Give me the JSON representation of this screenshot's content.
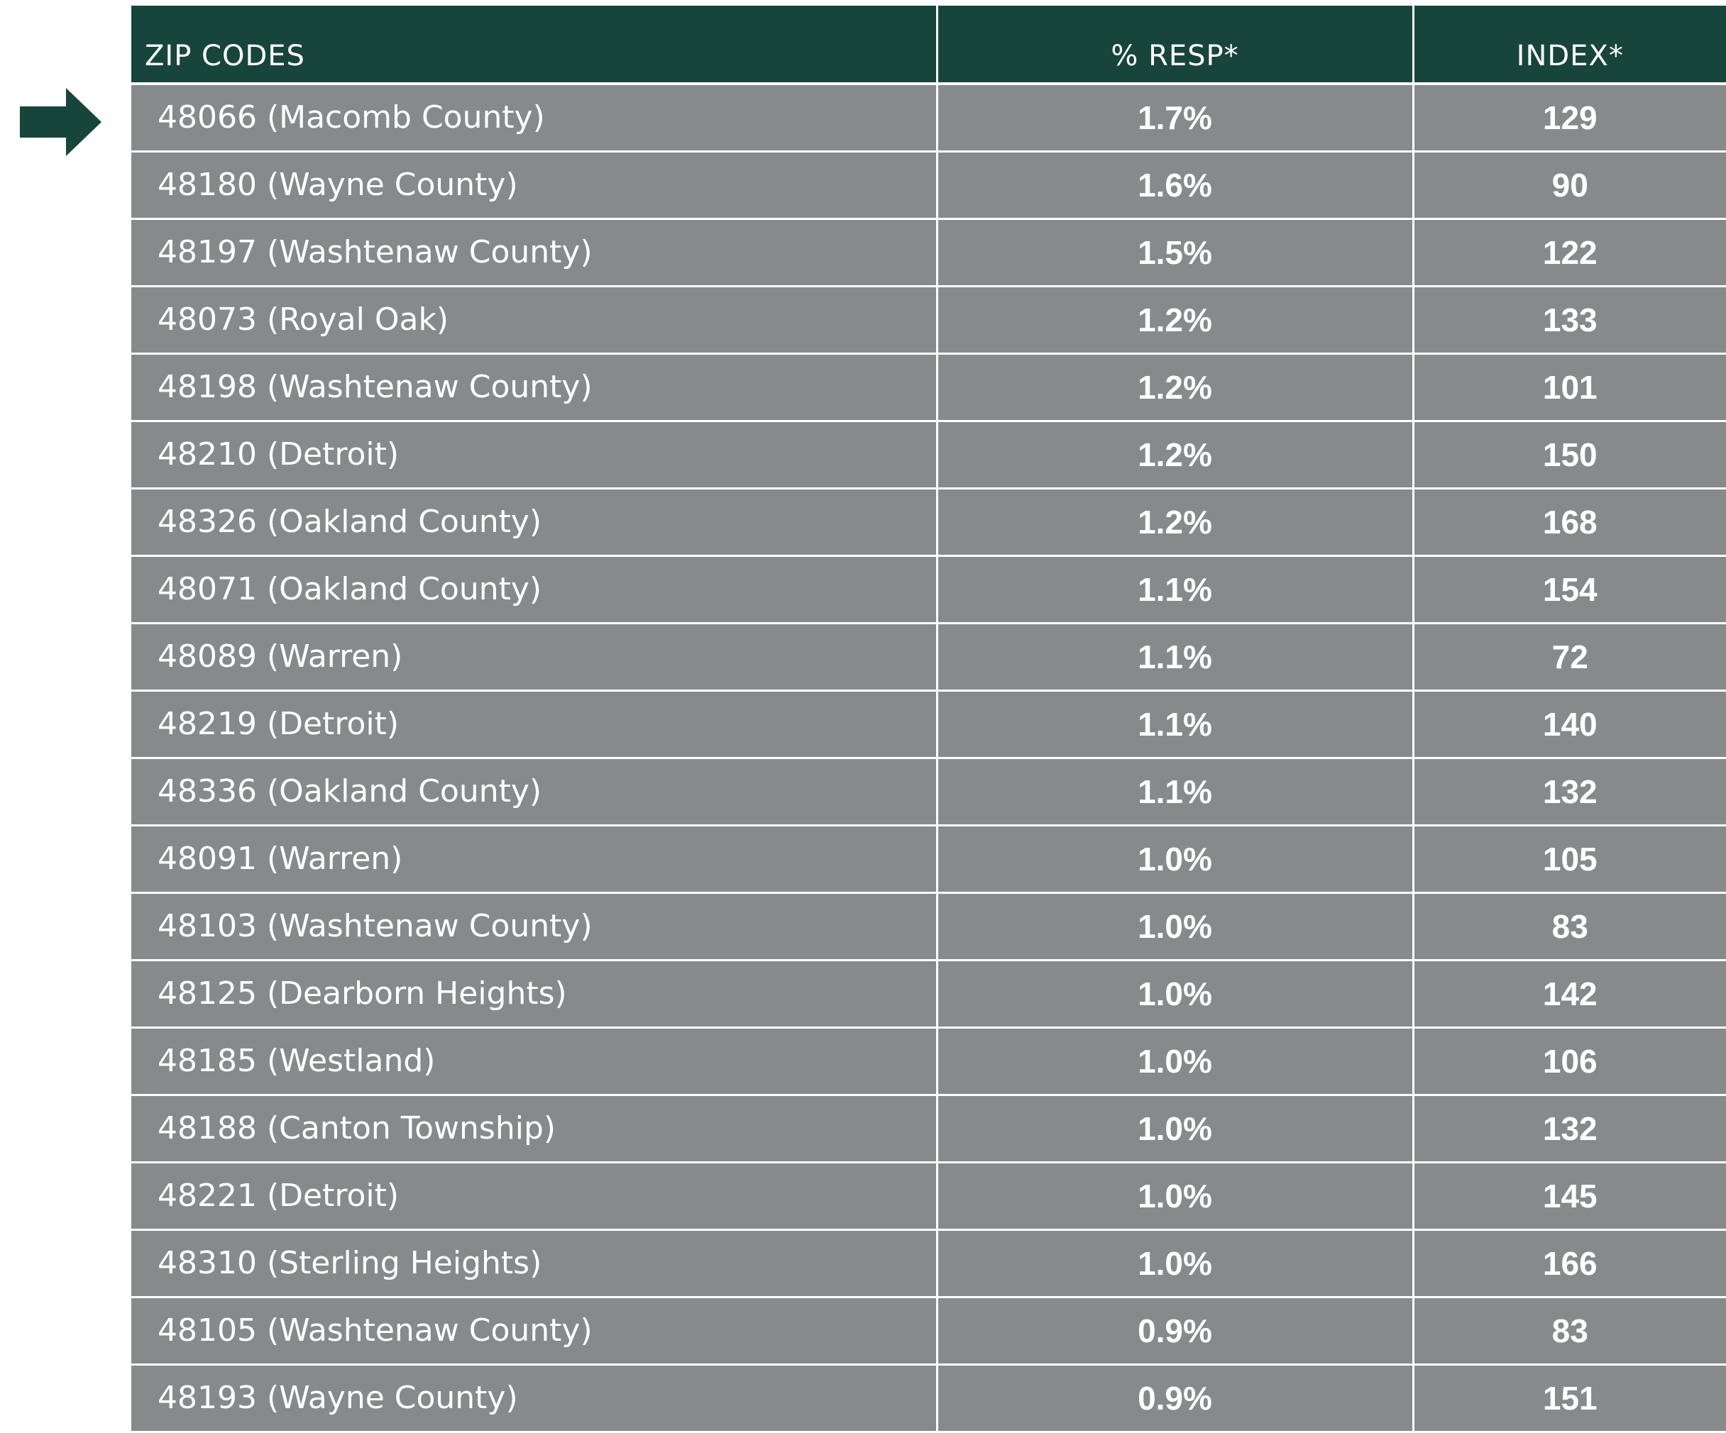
{
  "table": {
    "columns": [
      "ZIP CODES",
      "% RESP*",
      "INDEX*"
    ],
    "rows": [
      [
        "48066 (Macomb County)",
        "1.7%",
        "129"
      ],
      [
        "48180 (Wayne County)",
        "1.6%",
        "90"
      ],
      [
        "48197 (Washtenaw County)",
        "1.5%",
        "122"
      ],
      [
        "48073 (Royal Oak)",
        "1.2%",
        "133"
      ],
      [
        "48198 (Washtenaw County)",
        "1.2%",
        "101"
      ],
      [
        "48210 (Detroit)",
        "1.2%",
        "150"
      ],
      [
        "48326 (Oakland County)",
        "1.2%",
        "168"
      ],
      [
        "48071 (Oakland County)",
        "1.1%",
        "154"
      ],
      [
        "48089 (Warren)",
        "1.1%",
        "72"
      ],
      [
        "48219 (Detroit)",
        "1.1%",
        "140"
      ],
      [
        "48336 (Oakland County)",
        "1.1%",
        "132"
      ],
      [
        "48091 (Warren)",
        "1.0%",
        "105"
      ],
      [
        "48103 (Washtenaw County)",
        "1.0%",
        "83"
      ],
      [
        "48125 (Dearborn Heights)",
        "1.0%",
        "142"
      ],
      [
        "48185 (Westland)",
        "1.0%",
        "106"
      ],
      [
        "48188 (Canton Township)",
        "1.0%",
        "132"
      ],
      [
        "48221 (Detroit)",
        "1.0%",
        "145"
      ],
      [
        "48310 (Sterling Heights)",
        "1.0%",
        "166"
      ],
      [
        "48105 (Washtenaw County)",
        "0.9%",
        "83"
      ],
      [
        "48193 (Wayne County)",
        "0.9%",
        "151"
      ]
    ]
  }
}
